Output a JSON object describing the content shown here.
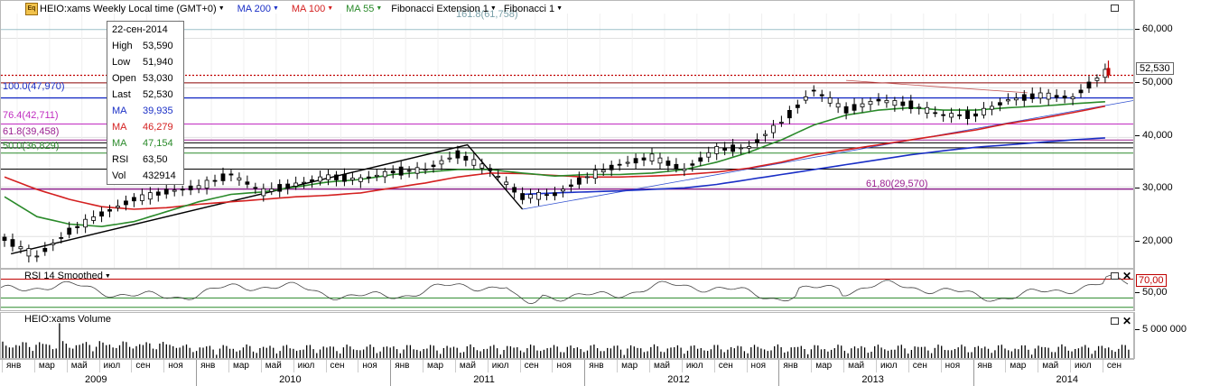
{
  "toolbar": {
    "icon_text": "Eq",
    "symbol": "HEIO:xams Weekly Local time (GMT+0)",
    "ma200": "MA 200",
    "ma100": "MA 100",
    "ma55": "MA 55",
    "fib_ext": "Fibonacci Extension 1",
    "fib": "Fibonacci 1"
  },
  "colors": {
    "ma200": "#1a2fc6",
    "ma100": "#d42020",
    "ma55": "#2a8a2a",
    "fib_pink": "#c02cc0",
    "grid": "#e0e0e0"
  },
  "infobox": {
    "date": "22-сен-2014",
    "rows": [
      {
        "label": "High",
        "value": "53,590"
      },
      {
        "label": "Low",
        "value": "51,940"
      },
      {
        "label": "Open",
        "value": "53,030"
      },
      {
        "label": "Last",
        "value": "52,530"
      },
      {
        "label": "MA",
        "value": "39,935"
      },
      {
        "label": "MA",
        "value": "46,279"
      },
      {
        "label": "MA",
        "value": "47,154"
      },
      {
        "label": "RSI",
        "value": "63,50"
      },
      {
        "label": "Vol",
        "value": "432914"
      }
    ]
  },
  "fib_labels": {
    "ext_161": "161.8(61,758)",
    "l100": "100.0(47,970)",
    "l764": "76.4(42,711)",
    "l618": "61.8(39,458)",
    "l500": "50.0(36,829)",
    "ext_618": "61,80(29,570)"
  },
  "price_axis": [
    "60,000",
    "50,000",
    "40,000",
    "30,000",
    "20,000"
  ],
  "last_price": "52,530",
  "rsi": {
    "title": "RSI 14 Smoothed",
    "level": "70,00",
    "ticks": [
      "50,00"
    ]
  },
  "volume": {
    "title": "HEIO:xams Volume",
    "ticks": [
      "5 000 000"
    ]
  },
  "time_axis": {
    "months": [
      "янв",
      "мар",
      "май",
      "июл",
      "сен",
      "ноя",
      "янв",
      "мар",
      "май",
      "июл",
      "сен",
      "ноя",
      "янв",
      "мар",
      "май",
      "июл",
      "сен",
      "ноя",
      "янв",
      "мар",
      "май",
      "июл",
      "сен",
      "ноя",
      "янв",
      "мар",
      "май",
      "июл",
      "сен",
      "ноя",
      "янв",
      "мар",
      "май",
      "июл",
      "сен"
    ],
    "years": [
      "2009",
      "2010",
      "2011",
      "2012",
      "2013",
      "2014"
    ]
  },
  "chart_data": {
    "type": "line",
    "title": "HEIO:xams Weekly",
    "x_dates": [
      "2009-01",
      "2009-03",
      "2009-05",
      "2009-07",
      "2009-09",
      "2009-11",
      "2010-01",
      "2010-03",
      "2010-05",
      "2010-07",
      "2010-09",
      "2010-11",
      "2011-01",
      "2011-03",
      "2011-05",
      "2011-07",
      "2011-09",
      "2011-11",
      "2012-01",
      "2012-03",
      "2012-05",
      "2012-07",
      "2012-09",
      "2012-11",
      "2013-01",
      "2013-03",
      "2013-05",
      "2013-07",
      "2013-09",
      "2013-11",
      "2014-01",
      "2014-03",
      "2014-05",
      "2014-07",
      "2014-09"
    ],
    "series": [
      {
        "name": "HEIO:xams",
        "values": [
          19.5,
          16.0,
          21.0,
          24.5,
          27.5,
          29.0,
          30.0,
          32.5,
          29.0,
          30.5,
          32.0,
          31.5,
          33.0,
          33.5,
          36.5,
          33.5,
          28.0,
          28.5,
          32.0,
          34.5,
          36.0,
          33.5,
          37.5,
          38.0,
          43.0,
          49.5,
          45.5,
          47.5,
          46.5,
          44.5,
          44.5,
          47.5,
          48.5,
          48.0,
          53.0
        ]
      },
      {
        "name": "MA 200",
        "values": [
          null,
          null,
          null,
          null,
          null,
          null,
          null,
          null,
          null,
          null,
          null,
          null,
          null,
          null,
          null,
          null,
          28.5,
          28.8,
          29.0,
          29.2,
          29.5,
          29.8,
          30.5,
          31.5,
          32.5,
          33.5,
          34.5,
          35.5,
          36.5,
          37.3,
          38.0,
          38.5,
          39.0,
          39.5,
          39.9
        ]
      },
      {
        "name": "MA 100",
        "values": [
          32.0,
          29.5,
          27.5,
          26.0,
          25.5,
          25.8,
          26.5,
          27.0,
          27.5,
          28.0,
          28.3,
          28.8,
          29.8,
          30.8,
          32.0,
          32.8,
          32.7,
          32.3,
          32.0,
          32.0,
          32.2,
          32.5,
          33.0,
          33.8,
          35.0,
          36.5,
          37.5,
          38.5,
          39.5,
          40.5,
          41.5,
          42.8,
          43.8,
          45.0,
          46.3
        ]
      },
      {
        "name": "MA 55",
        "values": [
          28.0,
          24.0,
          22.5,
          22.0,
          23.0,
          25.0,
          27.0,
          28.5,
          29.0,
          30.0,
          31.0,
          31.5,
          32.5,
          33.0,
          33.5,
          33.5,
          32.8,
          32.2,
          32.5,
          32.5,
          32.8,
          33.5,
          35.0,
          37.0,
          39.5,
          42.5,
          44.5,
          45.5,
          46.0,
          45.5,
          45.5,
          46.0,
          46.3,
          46.8,
          47.2
        ]
      }
    ],
    "y_ticks": [
      "60,000",
      "50,000",
      "40,000",
      "30,000",
      "20,000"
    ],
    "ylim": [
      13.3,
      65.0
    ],
    "grid": true,
    "fib_levels": [
      61.758,
      47.97,
      42.711,
      39.458,
      36.829,
      29.57
    ],
    "last_price": 52.53
  }
}
